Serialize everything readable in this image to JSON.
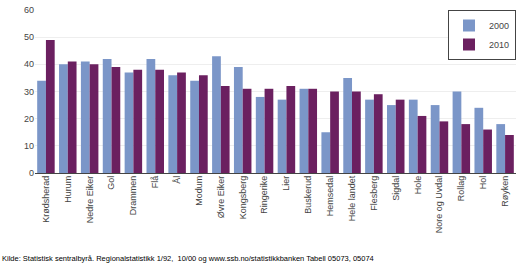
{
  "chart_data": {
    "type": "bar",
    "categories": [
      "Krødsherad",
      "Hurum",
      "Nedre Eiker",
      "Gol",
      "Drammen",
      "Flå",
      "Ål",
      "Modum",
      "Øvre Eiker",
      "Kongsberg",
      "Ringerike",
      "Lier",
      "Buskerud",
      "Hemsedal",
      "Hele landet",
      "Flesberg",
      "Sigdal",
      "Hole",
      "Nore og Uvdal",
      "Rollag",
      "Hol",
      "Røyken"
    ],
    "series": [
      {
        "name": "2000",
        "color": "#7b96c8",
        "values": [
          34,
          40,
          41,
          42,
          37,
          42,
          36,
          34,
          43,
          39,
          28,
          27,
          31,
          15,
          35,
          27,
          25,
          27,
          25,
          30,
          24,
          18
        ]
      },
      {
        "name": "2010",
        "color": "#6b2060",
        "values": [
          49,
          41,
          40,
          39,
          38,
          38,
          37,
          36,
          32,
          31,
          31,
          32,
          31,
          30,
          30,
          29,
          27,
          21,
          19,
          18,
          16,
          14
        ]
      }
    ],
    "ylim": [
      0,
      60
    ],
    "yticks": [
      0,
      10,
      20,
      30,
      40,
      50,
      60
    ],
    "grid": true,
    "legend": "upper right",
    "annotations": [
      "Kilde: Statistisk sentralbyrå. Regionalstatistikk 1/92,  10/00 og www.ssb.no/statistikkbanken Tabell 05073, 05074"
    ]
  }
}
